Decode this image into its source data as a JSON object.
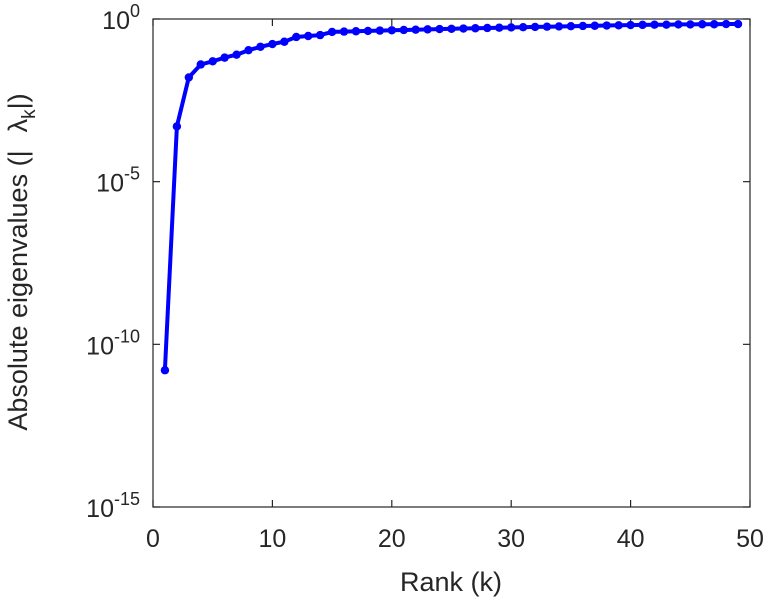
{
  "chart_data": {
    "type": "line",
    "xlabel": "Rank (k)",
    "ylabel": "Absolute eigenvalues (|λk|)",
    "ylabel_parts": {
      "before": "Absolute eigenvalues (|",
      "symbol": "λ",
      "subscript": "k",
      "after": "|)"
    },
    "xlim": [
      0,
      50
    ],
    "ylim": [
      1e-15,
      1
    ],
    "y_scale": "log",
    "grid": false,
    "x_ticks": [
      0,
      10,
      20,
      30,
      40,
      50
    ],
    "x_tick_labels": [
      "0",
      "10",
      "20",
      "30",
      "40",
      "50"
    ],
    "y_ticks": [
      1e-15,
      1e-10,
      1e-05,
      1
    ],
    "y_tick_labels": [
      {
        "base": "10",
        "exponent": "-15"
      },
      {
        "base": "10",
        "exponent": "-10"
      },
      {
        "base": "10",
        "exponent": "-5"
      },
      {
        "base": "10",
        "exponent": "0"
      }
    ],
    "series": [
      {
        "color": "#0000ff",
        "marker": "dot",
        "x": [
          1,
          2,
          3,
          4,
          5,
          6,
          7,
          8,
          9,
          10,
          11,
          12,
          13,
          14,
          15,
          16,
          17,
          18,
          19,
          20,
          21,
          22,
          23,
          24,
          25,
          26,
          27,
          28,
          29,
          30,
          31,
          32,
          33,
          34,
          35,
          36,
          37,
          38,
          39,
          40,
          41,
          42,
          43,
          44,
          45,
          46,
          47,
          48,
          49
        ],
        "y": [
          1.6e-11,
          0.0005,
          0.016,
          0.04,
          0.05,
          0.065,
          0.08,
          0.11,
          0.14,
          0.17,
          0.2,
          0.28,
          0.3,
          0.32,
          0.4,
          0.41,
          0.42,
          0.43,
          0.44,
          0.45,
          0.46,
          0.47,
          0.48,
          0.49,
          0.5,
          0.51,
          0.52,
          0.53,
          0.54,
          0.55,
          0.56,
          0.57,
          0.58,
          0.59,
          0.6,
          0.61,
          0.62,
          0.63,
          0.64,
          0.65,
          0.66,
          0.67,
          0.67,
          0.68,
          0.68,
          0.69,
          0.69,
          0.7,
          0.7
        ]
      }
    ]
  }
}
